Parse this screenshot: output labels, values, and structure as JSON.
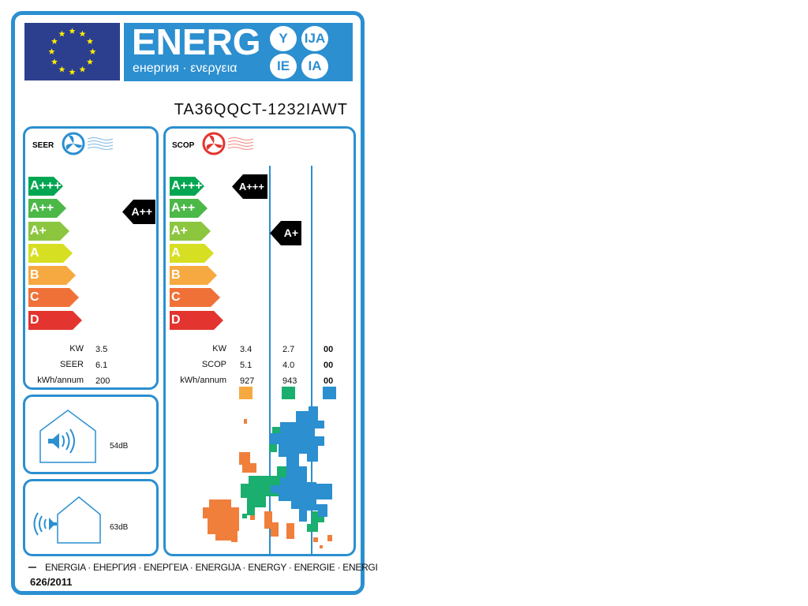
{
  "header": {
    "energy_word": "ENERG",
    "energy_suffixes": [
      "Y",
      "IJA",
      "IE",
      "IA"
    ],
    "subtitle": "енергия · ενεργεια",
    "model": "TA36QQCT-1232IAWT"
  },
  "classes": [
    "A+++",
    "A++",
    "A+",
    "A",
    "B",
    "C",
    "D"
  ],
  "class_colors": [
    "#00a651",
    "#4cb848",
    "#8cc63f",
    "#d7df23",
    "#f7a941",
    "#f07138",
    "#e3342f"
  ],
  "seer": {
    "title": "SEER",
    "icon": "fan-cooling-icon",
    "rating": "A++",
    "rows": [
      {
        "label": "KW",
        "value": "3.5"
      },
      {
        "label": "SEER",
        "value": "6.1"
      },
      {
        "label": "kWh/annum",
        "value": "200"
      }
    ]
  },
  "scop": {
    "title": "SCOP",
    "icon": "fan-heating-icon",
    "labels": [
      "KW",
      "SCOP",
      "kWh/annum"
    ],
    "columns": [
      {
        "rating": "A+++",
        "values": [
          "3.4",
          "5.1",
          "927"
        ],
        "color": "#f7a941"
      },
      {
        "rating": "A+",
        "values": [
          "2.7",
          "4.0",
          "943"
        ],
        "color": "#1aae6f"
      },
      {
        "rating": "",
        "values": [
          "00",
          "00",
          "00"
        ],
        "color": "#2b8fd0"
      }
    ]
  },
  "noise": {
    "indoor": "54dB",
    "outdoor": "63dB"
  },
  "footer": {
    "languages": "ENERGIA · ЕНЕРГИЯ · ΕΝΕΡΓΕΙΑ · ENERGIJA · ENERGY · ENERGIE · ENERGI",
    "regulation": "626/2011"
  }
}
